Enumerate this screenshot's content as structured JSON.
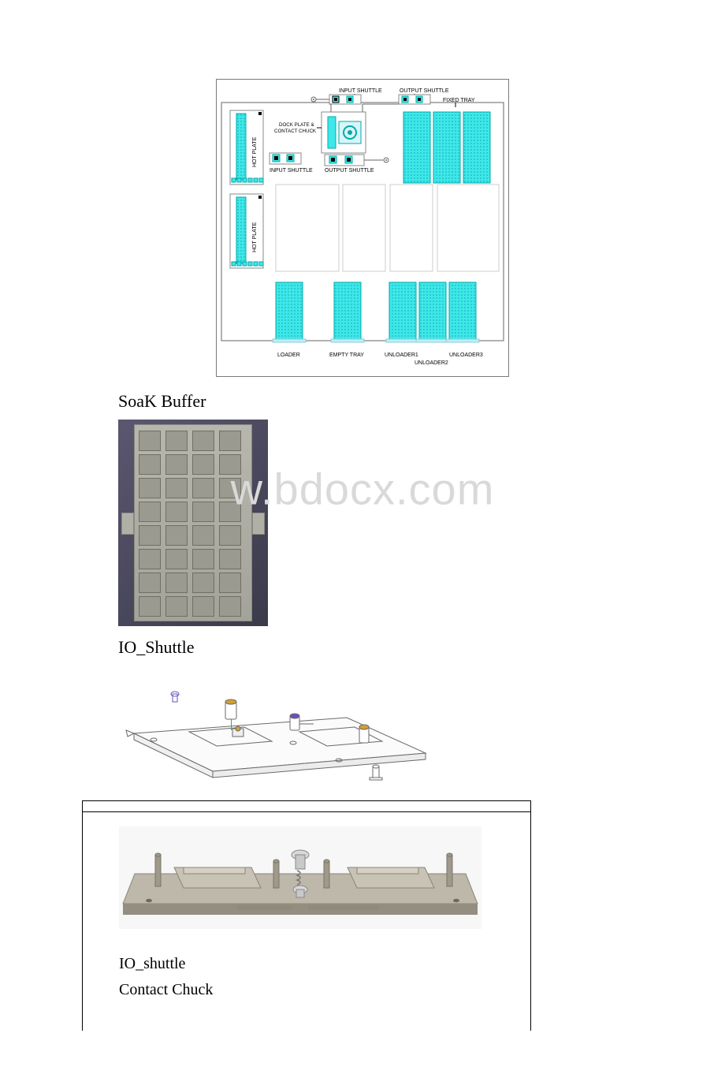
{
  "watermark": "w.bdocx.com",
  "diagram": {
    "title_top_left": "INPUT SHUTTLE",
    "title_top_right": "OUTPUT SHUTTLE",
    "fixed_tray": "FIXED TRAY",
    "hot_plate": "HOT PLATE",
    "dock_plate": "DOCK PLATE &",
    "contact_chuck_label": "CONTACT CHUCK",
    "input_shuttle": "INPUT SHUTTLE",
    "output_shuttle": "OUTPUT SHUTTLE",
    "loader": "LOADER",
    "empty_tray": "EMPTY TRAY",
    "unloader1": "UNLOADER1",
    "unloader2": "UNLOADER2",
    "unloader3": "UNLOADER3",
    "colors": {
      "accent": "#3fe8e8",
      "accent_stroke": "#14c8d8",
      "outline": "#666666",
      "text": "#000000",
      "chuck_fill": "#d8f5f9"
    }
  },
  "sections": {
    "soak_buffer": "SoaK Buffer",
    "io_shuttle_title": "IO_Shuttle",
    "io_shuttle_lower": "IO_shuttle",
    "contact_chuck": "Contact Chuck"
  },
  "buffer": {
    "rows": 8,
    "cols": 4,
    "bg_gradient_from": "#5a5770",
    "bg_gradient_to": "#3b3a4a",
    "plate_color": "#b7b7ad"
  },
  "shuttle_photo": {
    "base_fill": "#bdb8aa",
    "base_shadow": "#938e80",
    "pocket_fill": "#c8c3b5",
    "pin_fill": "#9e998b",
    "screw_fill": "#d9d9d9"
  },
  "shuttle_cad": {
    "line_color": "#6a6a6a",
    "accent1": "#6a4fbf",
    "accent2": "#d4a030",
    "accent3": "#4aa04a"
  }
}
